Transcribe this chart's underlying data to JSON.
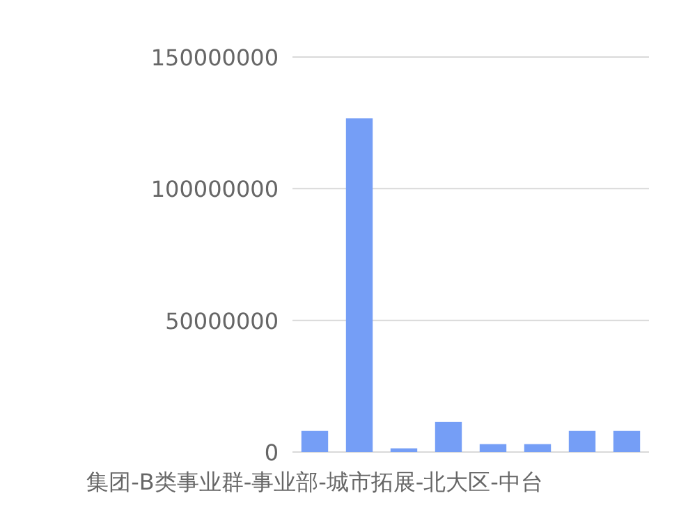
{
  "chart_data": {
    "type": "bar",
    "categories": [
      "集团-B类事业群-事业部-城市拓展-北大区-中台",
      null,
      null,
      null,
      null,
      null,
      null,
      null
    ],
    "values": [
      8000000,
      126700000,
      1400000,
      11400000,
      3000000,
      3000000,
      8000000,
      8000000
    ],
    "color": "#759ef6",
    "ylim": [
      0,
      150000000
    ],
    "yticks": [
      0,
      50000000,
      100000000,
      150000000
    ],
    "grid": "y"
  }
}
